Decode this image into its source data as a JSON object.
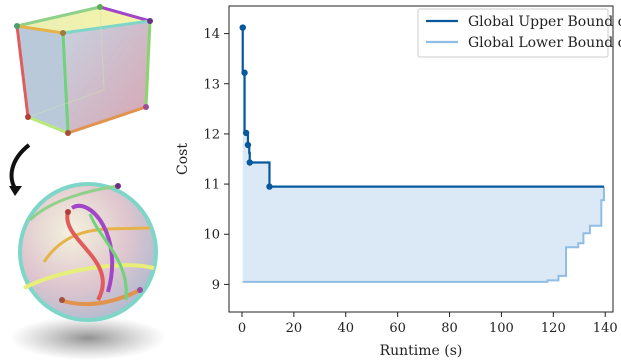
{
  "chart_data": {
    "type": "line",
    "xlabel": "Runtime (s)",
    "ylabel": "Cost",
    "xlim": [
      -5,
      143
    ],
    "ylim": [
      8.45,
      14.55
    ],
    "xticks": [
      0,
      20,
      40,
      60,
      80,
      100,
      120,
      140
    ],
    "yticks": [
      9,
      10,
      11,
      12,
      13,
      14
    ],
    "legend_position": "top-right",
    "fill_between_series": true,
    "series": [
      {
        "name": "Global Upper Bound c",
        "name_superscript": "⊤",
        "color": "#08589e",
        "x": [
          0.3,
          0.3,
          1.0,
          1.0,
          1.6,
          1.6,
          2.3,
          2.3,
          2.8,
          2.8,
          3.0,
          3.0,
          10.6,
          10.6,
          139.5
        ],
        "y": [
          14.12,
          13.22,
          13.22,
          12.02,
          12.02,
          11.98,
          11.98,
          11.78,
          11.78,
          11.62,
          11.62,
          11.43,
          11.43,
          10.95,
          10.95
        ],
        "markers_x": [
          0.3,
          1.0,
          1.6,
          2.3,
          3.0,
          10.6
        ],
        "markers_y": [
          14.12,
          13.22,
          12.02,
          11.78,
          11.43,
          10.95
        ]
      },
      {
        "name": "Global Lower Bound c",
        "name_subscript": "⊥",
        "color": "#8fbde4",
        "x": [
          0.3,
          117.7,
          117.7,
          122.0,
          122.0,
          124.9,
          124.9,
          129.6,
          129.6,
          131.6,
          131.6,
          134.1,
          134.1,
          138.5,
          138.5,
          139.5,
          139.5
        ],
        "y": [
          9.05,
          9.05,
          9.08,
          9.08,
          9.17,
          9.17,
          9.74,
          9.74,
          9.82,
          9.82,
          10.02,
          10.02,
          10.17,
          10.17,
          10.68,
          10.68,
          10.95
        ]
      }
    ],
    "fill_color": "#dbe9f6"
  },
  "colors": {
    "axis": "#222222",
    "fill": "#dbe9f6"
  },
  "illustration": {
    "cube_icon": "cube-illustration",
    "sphere_icon": "sphere-illustration",
    "arrow_icon": "curved-arrow-icon"
  }
}
